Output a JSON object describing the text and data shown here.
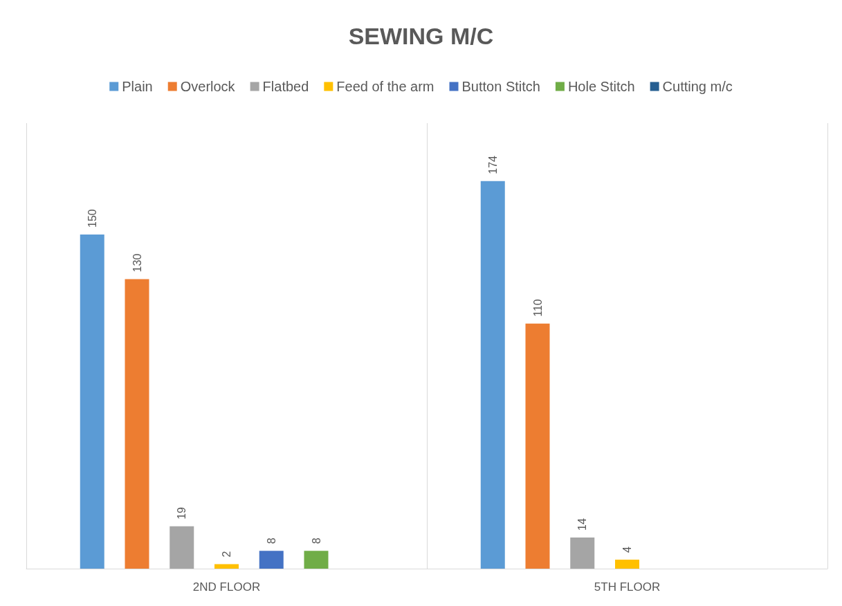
{
  "chart_data": {
    "type": "bar",
    "title": "SEWING M/C",
    "categories": [
      "2ND FLOOR",
      "5TH FLOOR"
    ],
    "series": [
      {
        "name": "Plain",
        "color": "#5b9bd5",
        "values": [
          150,
          174
        ]
      },
      {
        "name": "Overlock",
        "color": "#ed7d31",
        "values": [
          130,
          110
        ]
      },
      {
        "name": "Flatbed",
        "color": "#a5a5a5",
        "values": [
          19,
          14
        ]
      },
      {
        "name": "Feed of the arm",
        "color": "#ffc000",
        "values": [
          2,
          4
        ]
      },
      {
        "name": "Button Stitch",
        "color": "#4472c4",
        "values": [
          8,
          null
        ]
      },
      {
        "name": "Hole Stitch",
        "color": "#70ad47",
        "values": [
          8,
          null
        ]
      },
      {
        "name": "Cutting m/c",
        "color": "#255e91",
        "values": [
          null,
          null
        ]
      }
    ],
    "ylim": [
      0,
      200
    ],
    "data_labels": true,
    "grid": "x",
    "legend": "top"
  }
}
